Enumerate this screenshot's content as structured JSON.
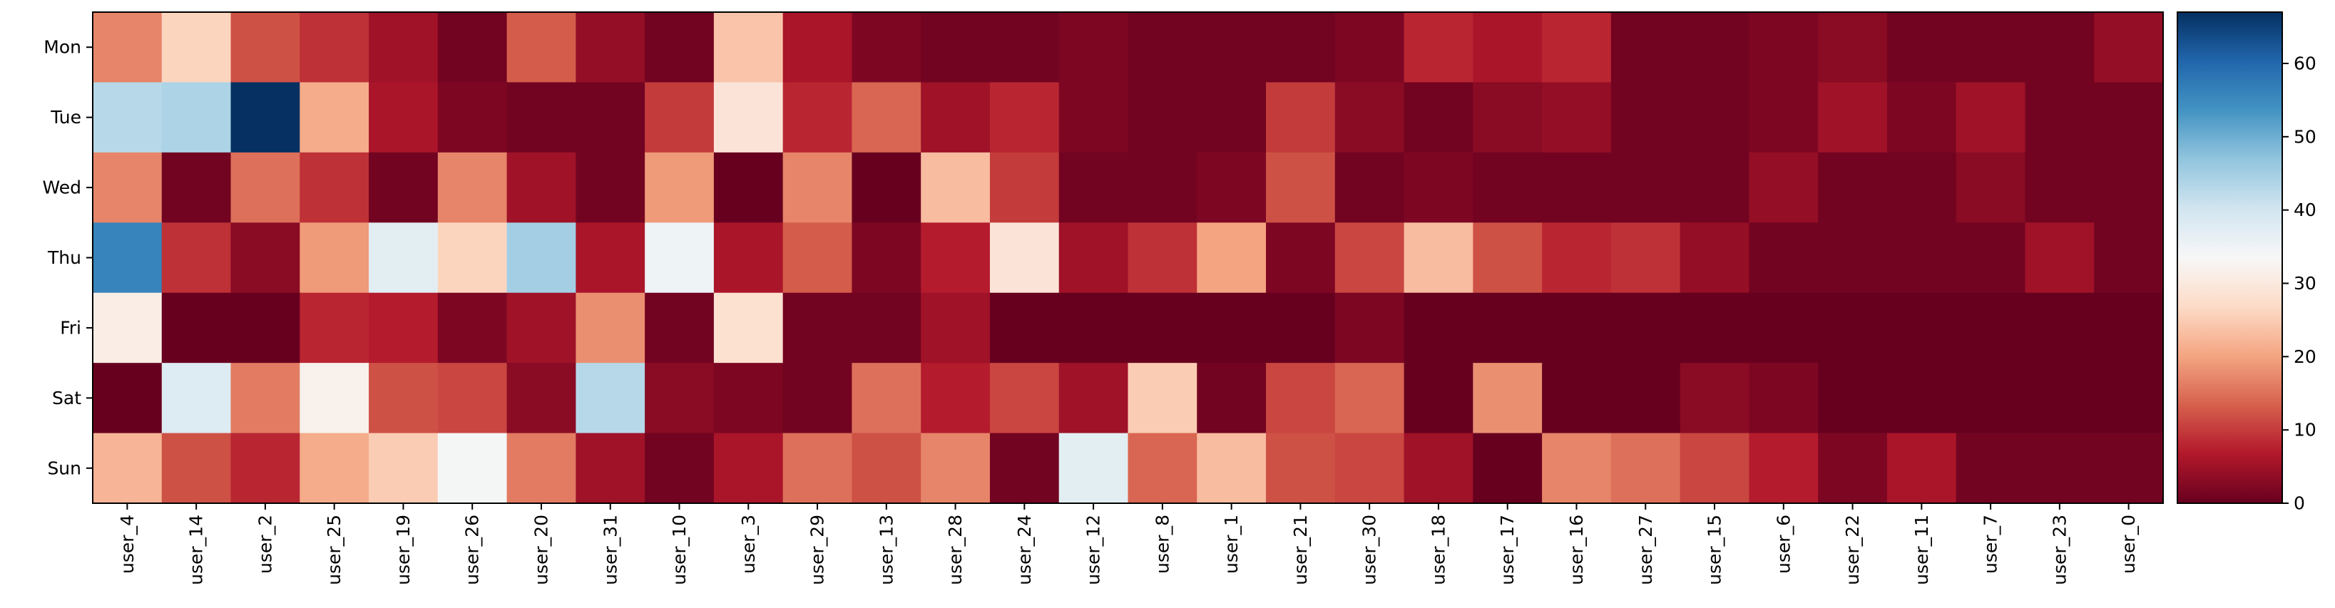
{
  "chart_data": {
    "type": "heatmap",
    "title": "",
    "xlabel": "",
    "ylabel": "",
    "rows": [
      "Mon",
      "Tue",
      "Wed",
      "Thu",
      "Fri",
      "Sat",
      "Sun"
    ],
    "columns": [
      "user_4",
      "user_14",
      "user_2",
      "user_25",
      "user_19",
      "user_26",
      "user_20",
      "user_31",
      "user_10",
      "user_3",
      "user_29",
      "user_13",
      "user_28",
      "user_24",
      "user_12",
      "user_8",
      "user_1",
      "user_21",
      "user_30",
      "user_18",
      "user_17",
      "user_16",
      "user_27",
      "user_15",
      "user_6",
      "user_22",
      "user_11",
      "user_7",
      "user_23",
      "user_0"
    ],
    "values": [
      [
        17,
        26,
        12,
        9,
        5,
        1,
        13,
        4,
        1,
        24,
        6,
        2,
        1,
        1,
        2,
        1,
        1,
        1,
        2,
        8,
        6,
        8,
        1,
        1,
        2,
        3,
        1,
        1,
        1,
        4
      ],
      [
        43,
        44,
        67,
        21,
        6,
        2,
        1,
        1,
        10,
        29,
        8,
        14,
        5,
        8,
        2,
        1,
        1,
        10,
        3,
        1,
        3,
        4,
        1,
        1,
        2,
        5,
        2,
        5,
        1,
        1
      ],
      [
        17,
        1,
        15,
        9,
        1,
        17,
        5,
        1,
        19,
        0,
        17,
        0,
        23,
        10,
        1,
        1,
        2,
        12,
        1,
        2,
        1,
        1,
        1,
        1,
        4,
        1,
        1,
        3,
        1,
        1
      ],
      [
        56,
        9,
        3,
        19,
        37,
        26,
        45,
        6,
        35,
        6,
        13,
        2,
        7,
        29,
        5,
        9,
        20,
        2,
        11,
        23,
        12,
        8,
        9,
        4,
        1,
        1,
        1,
        1,
        5,
        1
      ],
      [
        31,
        0,
        0,
        8,
        7,
        2,
        5,
        18,
        1,
        28,
        1,
        1,
        5,
        0,
        0,
        0,
        0,
        0,
        2,
        0,
        0,
        0,
        0,
        0,
        0,
        0,
        0,
        0,
        0,
        0
      ],
      [
        0,
        38,
        16,
        32,
        12,
        11,
        3,
        43,
        3,
        2,
        1,
        15,
        7,
        11,
        5,
        25,
        1,
        11,
        14,
        0,
        18,
        0,
        0,
        3,
        2,
        0,
        0,
        0,
        0,
        0
      ],
      [
        22,
        12,
        8,
        21,
        25,
        34,
        16,
        5,
        1,
        6,
        15,
        12,
        17,
        1,
        37,
        14,
        23,
        12,
        11,
        5,
        0,
        17,
        15,
        11,
        7,
        2,
        6,
        1,
        1,
        1
      ]
    ],
    "colorbar": {
      "colormap": "RdBu",
      "range": [
        0,
        67
      ],
      "ticks": [
        "0",
        "10",
        "20",
        "30",
        "40",
        "50",
        "60"
      ]
    },
    "grid": false,
    "legend": "colorbar-right"
  }
}
